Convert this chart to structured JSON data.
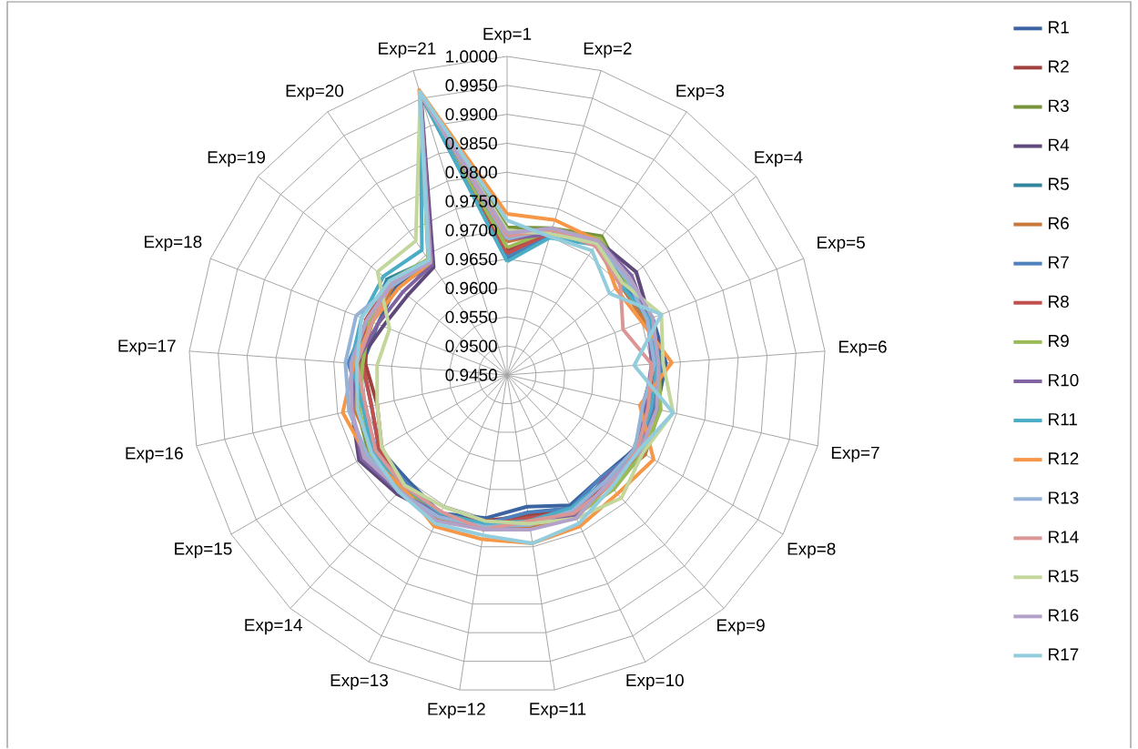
{
  "chart_data": {
    "type": "radar",
    "categories": [
      "Exp=1",
      "Exp=2",
      "Exp=3",
      "Exp=4",
      "Exp=5",
      "Exp=6",
      "Exp=7",
      "Exp=8",
      "Exp=9",
      "Exp=10",
      "Exp=11",
      "Exp=12",
      "Exp=13",
      "Exp=14",
      "Exp=15",
      "Exp=16",
      "Exp=17",
      "Exp=18",
      "Exp=19",
      "Exp=20",
      "Exp=21"
    ],
    "ylim": [
      0.945,
      1.0
    ],
    "yticks": [
      {
        "value": 0.945,
        "label": "0.9450"
      },
      {
        "value": 0.95,
        "label": "0.9500"
      },
      {
        "value": 0.955,
        "label": "0.9550"
      },
      {
        "value": 0.96,
        "label": "0.9600"
      },
      {
        "value": 0.965,
        "label": "0.9650"
      },
      {
        "value": 0.97,
        "label": "0.9700"
      },
      {
        "value": 0.975,
        "label": "0.9750"
      },
      {
        "value": 0.98,
        "label": "0.9800"
      },
      {
        "value": 0.985,
        "label": "0.9850"
      },
      {
        "value": 0.99,
        "label": "0.9900"
      },
      {
        "value": 0.995,
        "label": "0.9950"
      },
      {
        "value": 1.0,
        "label": "1.0000"
      }
    ],
    "grid": true,
    "legend": "right",
    "series": [
      {
        "name": "R1",
        "color": "#3C64A0",
        "values": [
          0.965,
          0.97,
          0.9725,
          0.97,
          0.972,
          0.9725,
          0.9715,
          0.9705,
          0.969,
          0.97,
          0.968,
          0.97,
          0.9715,
          0.97,
          0.9705,
          0.969,
          0.97,
          0.969,
          0.9695,
          0.968,
          0.996
        ]
      },
      {
        "name": "R2",
        "color": "#A0413E",
        "values": [
          0.9665,
          0.9705,
          0.9725,
          0.9705,
          0.9715,
          0.972,
          0.971,
          0.9715,
          0.97,
          0.971,
          0.9695,
          0.9705,
          0.972,
          0.9715,
          0.97,
          0.968,
          0.9695,
          0.971,
          0.9705,
          0.9685,
          0.9958
        ]
      },
      {
        "name": "R3",
        "color": "#77933C",
        "values": [
          0.9705,
          0.9715,
          0.974,
          0.971,
          0.971,
          0.9715,
          0.972,
          0.9725,
          0.971,
          0.9715,
          0.9705,
          0.971,
          0.9725,
          0.972,
          0.9725,
          0.9715,
          0.9705,
          0.97,
          0.97,
          0.969,
          0.996
        ]
      },
      {
        "name": "R4",
        "color": "#5F497A",
        "values": [
          0.969,
          0.9705,
          0.973,
          0.9735,
          0.9715,
          0.9705,
          0.969,
          0.971,
          0.97,
          0.972,
          0.9705,
          0.9715,
          0.972,
          0.973,
          0.9745,
          0.9725,
          0.971,
          0.968,
          0.967,
          0.9675,
          0.9955
        ]
      },
      {
        "name": "R5",
        "color": "#31859C",
        "values": [
          0.9648,
          0.97,
          0.9725,
          0.9705,
          0.971,
          0.9715,
          0.9705,
          0.972,
          0.9705,
          0.9715,
          0.97,
          0.9715,
          0.973,
          0.9715,
          0.972,
          0.97,
          0.9715,
          0.9705,
          0.9715,
          0.969,
          0.9955
        ]
      },
      {
        "name": "R6",
        "color": "#C8783A",
        "values": [
          0.968,
          0.971,
          0.973,
          0.97,
          0.9705,
          0.972,
          0.97,
          0.9725,
          0.971,
          0.972,
          0.9715,
          0.972,
          0.9725,
          0.971,
          0.9715,
          0.972,
          0.971,
          0.97,
          0.97,
          0.9688,
          0.9958
        ]
      },
      {
        "name": "R7",
        "color": "#4F81BD",
        "values": [
          0.9655,
          0.9705,
          0.9728,
          0.971,
          0.9712,
          0.9718,
          0.9708,
          0.9712,
          0.969,
          0.9705,
          0.969,
          0.971,
          0.9718,
          0.9705,
          0.971,
          0.9705,
          0.9725,
          0.971,
          0.9705,
          0.9685,
          0.996
        ]
      },
      {
        "name": "R8",
        "color": "#C0504D",
        "values": [
          0.966,
          0.9708,
          0.9727,
          0.9715,
          0.9718,
          0.971,
          0.97,
          0.9718,
          0.9705,
          0.9712,
          0.97,
          0.9712,
          0.9722,
          0.9712,
          0.9705,
          0.969,
          0.97,
          0.9712,
          0.9708,
          0.969,
          0.9958
        ]
      },
      {
        "name": "R9",
        "color": "#9BBB59",
        "values": [
          0.967,
          0.9712,
          0.9735,
          0.9712,
          0.972,
          0.9712,
          0.9722,
          0.972,
          0.972,
          0.972,
          0.9708,
          0.9712,
          0.9722,
          0.9718,
          0.9722,
          0.9712,
          0.97,
          0.9705,
          0.971,
          0.9692,
          0.996
        ]
      },
      {
        "name": "R10",
        "color": "#8064A2",
        "values": [
          0.9685,
          0.9705,
          0.973,
          0.9725,
          0.9712,
          0.97,
          0.9695,
          0.9712,
          0.9695,
          0.9718,
          0.971,
          0.9718,
          0.9718,
          0.9725,
          0.974,
          0.9725,
          0.9712,
          0.969,
          0.968,
          0.968,
          0.9955
        ]
      },
      {
        "name": "R11",
        "color": "#4BACC6",
        "values": [
          0.9646,
          0.9698,
          0.9722,
          0.97,
          0.9715,
          0.971,
          0.9705,
          0.971,
          0.97,
          0.9705,
          0.9705,
          0.971,
          0.9715,
          0.9712,
          0.9718,
          0.9705,
          0.972,
          0.972,
          0.9723,
          0.9711,
          0.9958
        ]
      },
      {
        "name": "R12",
        "color": "#F79646",
        "values": [
          0.9728,
          0.973,
          0.973,
          0.969,
          0.97,
          0.9735,
          0.9685,
          0.9742,
          0.973,
          0.974,
          0.9744,
          0.9737,
          0.974,
          0.9715,
          0.973,
          0.9741,
          0.9715,
          0.97,
          0.969,
          0.9685,
          0.9965
        ]
      },
      {
        "name": "R13",
        "color": "#95B3D7",
        "values": [
          0.9685,
          0.9715,
          0.9725,
          0.9715,
          0.971,
          0.9705,
          0.969,
          0.9705,
          0.97,
          0.971,
          0.9712,
          0.9715,
          0.9722,
          0.9725,
          0.9728,
          0.973,
          0.973,
          0.973,
          0.97,
          0.9688,
          0.996
        ]
      },
      {
        "name": "R14",
        "color": "#D99694",
        "values": [
          0.969,
          0.9712,
          0.972,
          0.97,
          0.9665,
          0.97,
          0.97,
          0.971,
          0.971,
          0.9715,
          0.9705,
          0.972,
          0.9712,
          0.9712,
          0.9712,
          0.97,
          0.971,
          0.97,
          0.9705,
          0.969,
          0.9958
        ]
      },
      {
        "name": "R15",
        "color": "#C3D69B",
        "values": [
          0.97,
          0.9705,
          0.9725,
          0.9705,
          0.9736,
          0.972,
          0.9744,
          0.972,
          0.974,
          0.9725,
          0.971,
          0.9705,
          0.9703,
          0.971,
          0.97,
          0.968,
          0.9675,
          0.9668,
          0.9736,
          0.973,
          0.9958
        ]
      },
      {
        "name": "R16",
        "color": "#B3A2C7",
        "values": [
          0.9695,
          0.9715,
          0.973,
          0.972,
          0.972,
          0.9712,
          0.9715,
          0.9715,
          0.9705,
          0.9725,
          0.972,
          0.972,
          0.973,
          0.9722,
          0.9735,
          0.9725,
          0.972,
          0.971,
          0.9705,
          0.9685,
          0.996
        ]
      },
      {
        "name": "R17",
        "color": "#93CDDD",
        "values": [
          0.9717,
          0.97,
          0.971,
          0.9676,
          0.9736,
          0.967,
          0.9744,
          0.9712,
          0.9715,
          0.9735,
          0.9744,
          0.973,
          0.9735,
          0.9725,
          0.972,
          0.9715,
          0.971,
          0.972,
          0.971,
          0.969,
          0.9962
        ]
      }
    ]
  }
}
